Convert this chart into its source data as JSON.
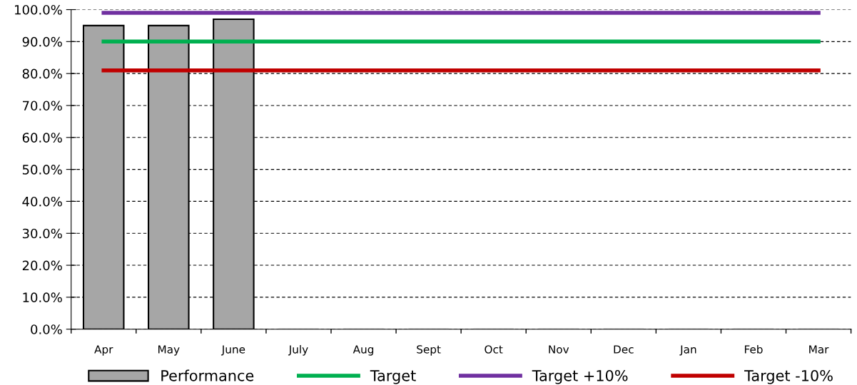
{
  "chart_data": {
    "type": "bar",
    "categories": [
      "Apr",
      "May",
      "June",
      "July",
      "Aug",
      "Sept",
      "Oct",
      "Nov",
      "Dec",
      "Jan",
      "Feb",
      "Mar"
    ],
    "series": [
      {
        "name": "Performance",
        "color": "#a6a6a6",
        "values": [
          95,
          95,
          97,
          0,
          0,
          0,
          0,
          0,
          0,
          0,
          0,
          0
        ]
      },
      {
        "name": "Target",
        "type": "line",
        "color": "#00b050",
        "values": [
          90,
          90,
          90,
          90,
          90,
          90,
          90,
          90,
          90,
          90,
          90,
          90
        ]
      },
      {
        "name": "Target +10%",
        "type": "line",
        "color": "#7030a0",
        "values": [
          99,
          99,
          99,
          99,
          99,
          99,
          99,
          99,
          99,
          99,
          99,
          99
        ]
      },
      {
        "name": "Target -10%",
        "type": "line",
        "color": "#c00000",
        "values": [
          81,
          81,
          81,
          81,
          81,
          81,
          81,
          81,
          81,
          81,
          81,
          81
        ]
      }
    ],
    "ylim": [
      0,
      100
    ],
    "yticks": [
      {
        "value": 0,
        "label": "0.0%"
      },
      {
        "value": 10,
        "label": "10.0%"
      },
      {
        "value": 20,
        "label": "20.0%"
      },
      {
        "value": 30,
        "label": "30.0%"
      },
      {
        "value": 40,
        "label": "40.0%"
      },
      {
        "value": 50,
        "label": "50.0%"
      },
      {
        "value": 60,
        "label": "60.0%"
      },
      {
        "value": 70,
        "label": "70.0%"
      },
      {
        "value": 80,
        "label": "80.0%"
      },
      {
        "value": 90,
        "label": "90.0%"
      },
      {
        "value": 100,
        "label": "100.0%"
      }
    ],
    "grid": "y",
    "legend": "bottom",
    "marker": "none",
    "line_style": "solid"
  }
}
